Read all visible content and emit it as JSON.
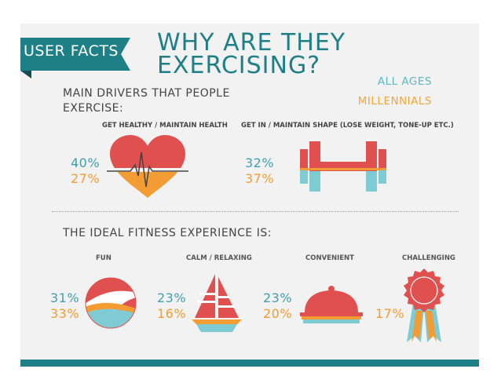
{
  "header": {
    "tag_label": "USER FACTS",
    "title_line1": "WHY ARE THEY",
    "title_line2": "EXERCISING?"
  },
  "legend": {
    "all_ages": "ALL AGES",
    "millennials": "MILLENNIALS"
  },
  "drivers": {
    "heading": "MAIN DRIVERS THAT PEOPLE EXERCISE:",
    "items": [
      {
        "label": "GET HEALTHY / MAINTAIN HEALTH",
        "all_ages": "40%",
        "millennials": "27%",
        "icon": "heart-icon"
      },
      {
        "label": "GET IN / MAINTAIN SHAPE (LOSE WEIGHT, TONE-UP ETC.)",
        "all_ages": "32%",
        "millennials": "37%",
        "icon": "dumbbell-icon"
      }
    ]
  },
  "experience": {
    "heading": "THE IDEAL FITNESS EXPERIENCE IS:",
    "items": [
      {
        "label": "FUN",
        "all_ages": "31%",
        "millennials": "33%",
        "icon": "beach-ball-icon"
      },
      {
        "label": "CALM / RELAXING",
        "all_ages": "23%",
        "millennials": "16%",
        "icon": "sailboat-icon"
      },
      {
        "label": "CONVENIENT",
        "all_ages": "23%",
        "millennials": "20%",
        "icon": "cloche-icon"
      },
      {
        "label": "CHALLENGING",
        "millennials": "17%",
        "icon": "award-ribbon-icon"
      }
    ]
  },
  "colors": {
    "teal_dark": "#1f7f86",
    "teal_light": "#7fcbd3",
    "orange": "#f39c33",
    "red": "#e0504f",
    "panel": "#f2f2f2"
  }
}
